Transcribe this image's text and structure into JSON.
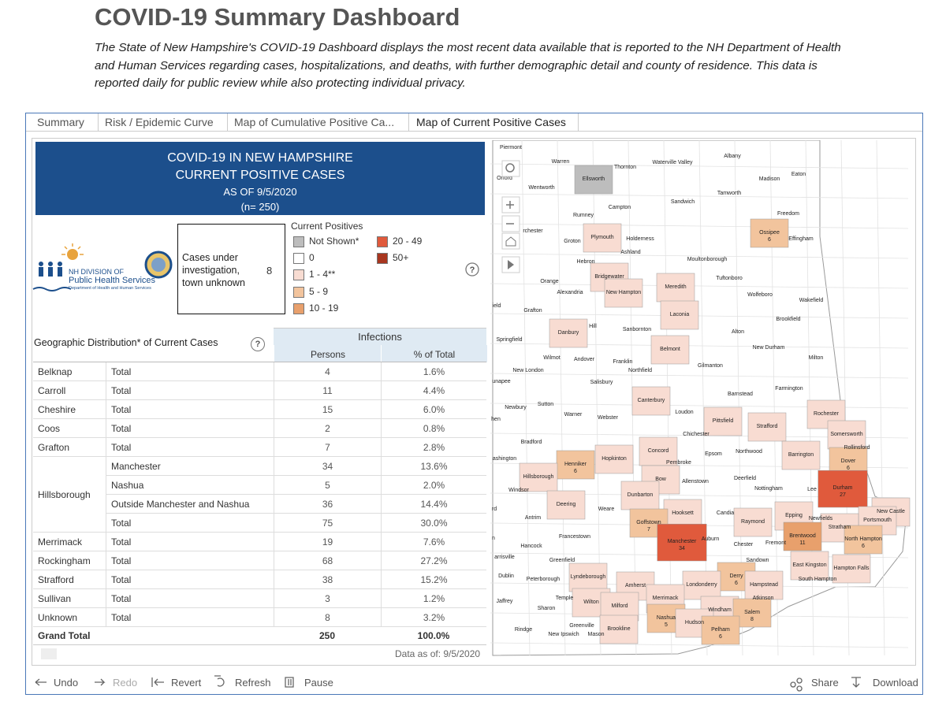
{
  "header": {
    "title": "COVID-19 Summary Dashboard",
    "description": "The State of New Hampshire's COVID-19 Dashboard displays the most recent data available that is reported to the NH Department of Health and Human Services regarding cases, hospitalizations, and deaths, with further demographic detail and county of residence. This data is reported daily for public review while also protecting individual privacy."
  },
  "tabs": [
    "Summary",
    "Risk / Epidemic Curve",
    "Map of Cumulative Positive Ca...",
    "Map of Current Positive Cases"
  ],
  "banner": {
    "lines": [
      "COVID-19 IN NEW HAMPSHIRE",
      "CURRENT POSITIVE CASES",
      "AS OF 9/5/2020",
      "(n= 250)"
    ]
  },
  "logo": {
    "line1": "NH DIVISION OF",
    "line2": "Public Health Services",
    "line3": "Department of Health and Human Services"
  },
  "unknown_box": {
    "label": "Cases under investigation, town unknown",
    "value": 8
  },
  "help_icon": "?",
  "legend": {
    "title": "Current Positives",
    "items": [
      {
        "label": "Not Shown*",
        "color": "#bdbdbd"
      },
      {
        "label": "0",
        "color": "#ffffff"
      },
      {
        "label": "1 - 4**",
        "color": "#f8dcd2"
      },
      {
        "label": "5 - 9",
        "color": "#f2c49d"
      },
      {
        "label": "10 - 19",
        "color": "#e8a06c"
      },
      {
        "label": "20 - 49",
        "color": "#e05a3c"
      },
      {
        "label": "50+",
        "color": "#a8361f"
      }
    ]
  },
  "table": {
    "title": "Geographic Distribution* of Current Cases",
    "group_header": "Infections",
    "columns": [
      "Persons",
      "% of Total"
    ],
    "groups": [
      {
        "county": "Belknap",
        "rows": [
          {
            "sub": "Total",
            "persons": 4,
            "pct": "1.6%"
          }
        ]
      },
      {
        "county": "Carroll",
        "rows": [
          {
            "sub": "Total",
            "persons": 11,
            "pct": "4.4%"
          }
        ]
      },
      {
        "county": "Cheshire",
        "rows": [
          {
            "sub": "Total",
            "persons": 15,
            "pct": "6.0%"
          }
        ]
      },
      {
        "county": "Coos",
        "rows": [
          {
            "sub": "Total",
            "persons": 2,
            "pct": "0.8%"
          }
        ]
      },
      {
        "county": "Grafton",
        "rows": [
          {
            "sub": "Total",
            "persons": 7,
            "pct": "2.8%"
          }
        ]
      },
      {
        "county": "Hillsborough",
        "rows": [
          {
            "sub": "Manchester",
            "persons": 34,
            "pct": "13.6%"
          },
          {
            "sub": "Nashua",
            "persons": 5,
            "pct": "2.0%"
          },
          {
            "sub": "Outside Manchester and Nashua",
            "persons": 36,
            "pct": "14.4%"
          },
          {
            "sub": "Total",
            "persons": 75,
            "pct": "30.0%"
          }
        ]
      },
      {
        "county": "Merrimack",
        "rows": [
          {
            "sub": "Total",
            "persons": 19,
            "pct": "7.6%"
          }
        ]
      },
      {
        "county": "Rockingham",
        "rows": [
          {
            "sub": "Total",
            "persons": 68,
            "pct": "27.2%"
          }
        ]
      },
      {
        "county": "Strafford",
        "rows": [
          {
            "sub": "Total",
            "persons": 38,
            "pct": "15.2%"
          }
        ]
      },
      {
        "county": "Sullivan",
        "rows": [
          {
            "sub": "Total",
            "persons": 3,
            "pct": "1.2%"
          }
        ]
      },
      {
        "county": "Unknown",
        "rows": [
          {
            "sub": "Total",
            "persons": 8,
            "pct": "3.2%"
          }
        ]
      }
    ],
    "grand_total": {
      "label": "Grand Total",
      "persons": 250,
      "pct": "100.0%"
    }
  },
  "data_as_of": "Data as of:  9/5/2020",
  "map": {
    "towns": [
      {
        "name": "Piermont"
      },
      {
        "name": "Warren"
      },
      {
        "name": "Thornton"
      },
      {
        "name": "Waterville Valley"
      },
      {
        "name": "Albany"
      },
      {
        "name": "Eaton"
      },
      {
        "name": "Madison"
      },
      {
        "name": "Orford"
      },
      {
        "name": "Ellsworth",
        "color": "#bdbdbd"
      },
      {
        "name": "Wentworth"
      },
      {
        "name": "Tamworth"
      },
      {
        "name": "Sandwich"
      },
      {
        "name": "Campton"
      },
      {
        "name": "Freedom"
      },
      {
        "name": "Rumney"
      },
      {
        "name": "rchester"
      },
      {
        "name": "Groton"
      },
      {
        "name": "Plymouth",
        "color": "#f8dcd2"
      },
      {
        "name": "Holderness"
      },
      {
        "name": "Ossipee",
        "cases": 6,
        "color": "#f2c49d"
      },
      {
        "name": "Effingham"
      },
      {
        "name": "Ashland"
      },
      {
        "name": "Hebron"
      },
      {
        "name": "Moultonborough"
      },
      {
        "name": "Tuftonboro"
      },
      {
        "name": "Bridgewater",
        "color": "#f8dcd2"
      },
      {
        "name": "Orange"
      },
      {
        "name": "Alexandria"
      },
      {
        "name": "New Hampton",
        "color": "#f8dcd2"
      },
      {
        "name": "Meredith",
        "color": "#f8dcd2"
      },
      {
        "name": "Wolfeboro"
      },
      {
        "name": "Wakefield"
      },
      {
        "name": "Grafton"
      },
      {
        "name": "Laconia",
        "color": "#f8dcd2"
      },
      {
        "name": "Brookfield"
      },
      {
        "name": "Hill"
      },
      {
        "name": "Danbury",
        "color": "#f8dcd2"
      },
      {
        "name": "Sanbornton"
      },
      {
        "name": "Alton"
      },
      {
        "name": "Springfield"
      },
      {
        "name": "New Durham"
      },
      {
        "name": "Belmont",
        "color": "#f8dcd2"
      },
      {
        "name": "Milton"
      },
      {
        "name": "Wilmot"
      },
      {
        "name": "Andover"
      },
      {
        "name": "Franklin"
      },
      {
        "name": "Northfield"
      },
      {
        "name": "Gilmanton"
      },
      {
        "name": "New London"
      },
      {
        "name": "Salisbury"
      },
      {
        "name": "Farmington"
      },
      {
        "name": "Barnstead"
      },
      {
        "name": "Canterbury",
        "color": "#f8dcd2"
      },
      {
        "name": "Sutton"
      },
      {
        "name": "Newbury"
      },
      {
        "name": "Warner"
      },
      {
        "name": "Webster"
      },
      {
        "name": "Loudon"
      },
      {
        "name": "Rochester",
        "color": "#f8dcd2"
      },
      {
        "name": "Pittsfield",
        "color": "#f8dcd2"
      },
      {
        "name": "Strafford",
        "color": "#f8dcd2"
      },
      {
        "name": "Chichester"
      },
      {
        "name": "Somersworth",
        "color": "#f8dcd2"
      },
      {
        "name": "Bradford"
      },
      {
        "name": "Rollinsford"
      },
      {
        "name": "Concord",
        "color": "#f8dcd2"
      },
      {
        "name": "Northwood"
      },
      {
        "name": "Barrington",
        "color": "#f8dcd2"
      },
      {
        "name": "Epsom"
      },
      {
        "name": "Hopkinton",
        "color": "#f8dcd2"
      },
      {
        "name": "Henniker",
        "cases": 6,
        "color": "#f2c49d"
      },
      {
        "name": "Pembroke"
      },
      {
        "name": "Dover",
        "cases": 6,
        "color": "#f2c49d"
      },
      {
        "name": "Hillsborough",
        "color": "#f8dcd2"
      },
      {
        "name": "Bow",
        "color": "#f8dcd2"
      },
      {
        "name": "Allenstown"
      },
      {
        "name": "Deerfield"
      },
      {
        "name": "Durham",
        "cases": 27,
        "color": "#e05a3c"
      },
      {
        "name": "Nottingham"
      },
      {
        "name": "Lee"
      },
      {
        "name": "Windsor"
      },
      {
        "name": "Dunbarton",
        "color": "#f8dcd2"
      },
      {
        "name": "Deering",
        "color": "#f8dcd2"
      },
      {
        "name": "Weare"
      },
      {
        "name": "Hooksett",
        "color": "#f8dcd2"
      },
      {
        "name": "Candia"
      },
      {
        "name": "Epping",
        "color": "#f8dcd2"
      },
      {
        "name": "Newfields"
      },
      {
        "name": "New Castle",
        "color": "#f8dcd2"
      },
      {
        "name": "Portsmouth",
        "color": "#f8dcd2"
      },
      {
        "name": "Goffstown",
        "cases": 7,
        "color": "#f2c49d"
      },
      {
        "name": "Stratham",
        "color": "#f8dcd2"
      },
      {
        "name": "Antrim"
      },
      {
        "name": "Raymond",
        "color": "#f8dcd2"
      },
      {
        "name": "Manchester",
        "cases": 34,
        "color": "#e05a3c"
      },
      {
        "name": "Auburn"
      },
      {
        "name": "Brentwood",
        "cases": 11,
        "color": "#e8a06c"
      },
      {
        "name": "North Hampton",
        "cases": 6,
        "color": "#f2c49d"
      },
      {
        "name": "Francestown"
      },
      {
        "name": "Chester"
      },
      {
        "name": "Fremont"
      },
      {
        "name": "Hancock"
      },
      {
        "name": "Greenfield"
      },
      {
        "name": "Sandown"
      },
      {
        "name": "East Kingston",
        "color": "#f8dcd2"
      },
      {
        "name": "Hampton Falls",
        "color": "#f8dcd2"
      },
      {
        "name": "Dublin"
      },
      {
        "name": "Peterborough"
      },
      {
        "name": "Lyndeborough",
        "color": "#f8dcd2"
      },
      {
        "name": "Derry",
        "cases": 6,
        "color": "#f2c49d"
      },
      {
        "name": "South Hampton"
      },
      {
        "name": "Hampstead",
        "color": "#f8dcd2"
      },
      {
        "name": "Amherst",
        "color": "#f8dcd2"
      },
      {
        "name": "Londonderry",
        "color": "#f8dcd2"
      },
      {
        "name": "Temple"
      },
      {
        "name": "Wilton",
        "color": "#f8dcd2"
      },
      {
        "name": "Atkinson"
      },
      {
        "name": "Jaffrey"
      },
      {
        "name": "Milford",
        "color": "#f8dcd2"
      },
      {
        "name": "Merrimack",
        "color": "#f8dcd2"
      },
      {
        "name": "Sharon"
      },
      {
        "name": "Windham",
        "color": "#f8dcd2"
      },
      {
        "name": "Salem",
        "cases": 8,
        "color": "#f2c49d"
      },
      {
        "name": "Nashua",
        "cases": 5,
        "color": "#f2c49d"
      },
      {
        "name": "Hudson",
        "color": "#f8dcd2"
      },
      {
        "name": "Pelham",
        "cases": 6,
        "color": "#f2c49d"
      },
      {
        "name": "Rindge"
      },
      {
        "name": "Greenville"
      },
      {
        "name": "Mason"
      },
      {
        "name": "Brookline",
        "color": "#f8dcd2"
      },
      {
        "name": "New Ipswich"
      },
      {
        "name": "unapee"
      },
      {
        "name": "ashington"
      },
      {
        "name": "hen"
      },
      {
        "name": "ield"
      },
      {
        "name": "arrisville"
      },
      {
        "name": "rd"
      },
      {
        "name": "n"
      }
    ]
  },
  "toolbar": {
    "left": [
      "Undo",
      "Redo",
      "Revert",
      "Refresh",
      "Pause"
    ],
    "right": [
      "Share",
      "Download"
    ]
  }
}
